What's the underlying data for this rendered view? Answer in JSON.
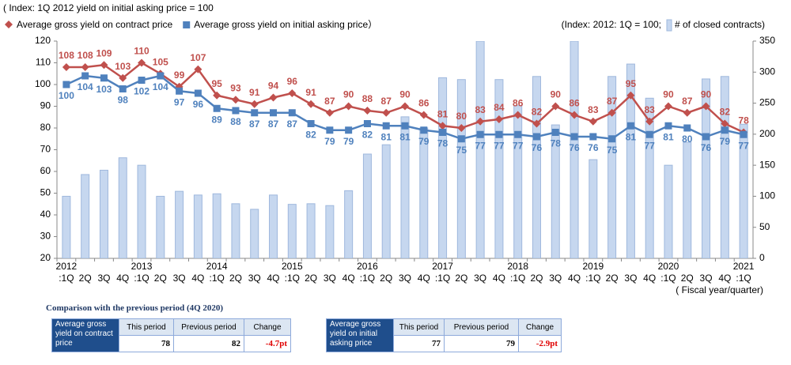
{
  "chart_data": {
    "type": "bar-line",
    "title": "( Index: 1Q 2012 yield on initial asking price = 100",
    "right_note": "(Index: 2012: 1Q = 100;",
    "legend_suffix": "）",
    "x_label": "( Fiscal year/quarter)",
    "categories": [
      ":1Q",
      "2Q",
      "3Q",
      "4Q",
      ":1Q",
      "2Q",
      "3Q",
      "4Q",
      ":1Q",
      "2Q",
      "3Q",
      "4Q",
      ":1Q",
      "2Q",
      "3Q",
      "4Q",
      ":1Q",
      "2Q",
      "3Q",
      "4Q",
      ":1Q",
      "2Q",
      "3Q",
      "4Q",
      ":1Q",
      "2Q",
      "3Q",
      "4Q",
      ":1Q",
      "2Q",
      "3Q",
      "4Q",
      ":1Q",
      "2Q",
      "3Q",
      "4Q",
      ":1Q"
    ],
    "years": [
      "2012",
      null,
      null,
      null,
      "2013",
      null,
      null,
      null,
      "2014",
      null,
      null,
      null,
      "2015",
      null,
      null,
      null,
      "2016",
      null,
      null,
      null,
      "2017",
      null,
      null,
      null,
      "2018",
      null,
      null,
      null,
      "2019",
      null,
      null,
      null,
      "2020",
      null,
      null,
      null,
      "2021"
    ],
    "series": [
      {
        "name": "Average gross yield on contract price",
        "color": "#c0504d",
        "kind": "line",
        "marker": "diamond",
        "values": [
          108,
          108,
          109,
          103,
          110,
          105,
          99,
          107,
          95,
          93,
          91,
          94,
          96,
          91,
          87,
          90,
          88,
          87,
          90,
          86,
          81,
          80,
          83,
          84,
          86,
          82,
          90,
          86,
          83,
          87,
          95,
          83,
          90,
          87,
          90,
          82,
          78
        ]
      },
      {
        "name": "Average gross yield on initial asking price",
        "color": "#4f81bd",
        "kind": "line",
        "marker": "square",
        "values": [
          100,
          104,
          103,
          98,
          102,
          104,
          97,
          96,
          89,
          88,
          87,
          87,
          87,
          82,
          79,
          79,
          82,
          81,
          81,
          79,
          78,
          75,
          77,
          77,
          77,
          76,
          78,
          76,
          76,
          75,
          81,
          77,
          81,
          80,
          76,
          79,
          77
        ]
      },
      {
        "name": "# of closed contracts)",
        "color": "#c6d7ef",
        "kind": "bar",
        "axis": "y2",
        "values": [
          100,
          135,
          142,
          162,
          150,
          100,
          108,
          102,
          104,
          88,
          79,
          102,
          87,
          88,
          85,
          109,
          168,
          183,
          228,
          210,
          291,
          288,
          350,
          288,
          246,
          293,
          215,
          350,
          159,
          293,
          313,
          258,
          150,
          187,
          289,
          293,
          216
        ]
      }
    ],
    "ylim": [
      20,
      120
    ],
    "yticks": [
      20,
      30,
      40,
      50,
      60,
      70,
      80,
      90,
      100,
      110,
      120
    ],
    "y2lim": [
      0,
      350
    ],
    "y2ticks": [
      0,
      50,
      100,
      150,
      200,
      250,
      300,
      350
    ],
    "grid": false
  },
  "comparison": {
    "title": "Comparison with the previous period (4Q 2020)",
    "tables": [
      {
        "label": "Average gross yield on contract price",
        "headers": [
          "This period",
          "Previous period",
          "Change"
        ],
        "values": [
          "78",
          "82",
          "-4.7pt"
        ]
      },
      {
        "label": "Average gross yield on initial asking price",
        "headers": [
          "This period",
          "Previous period",
          "Change"
        ],
        "values": [
          "77",
          "79",
          "-2.9pt"
        ]
      }
    ]
  }
}
